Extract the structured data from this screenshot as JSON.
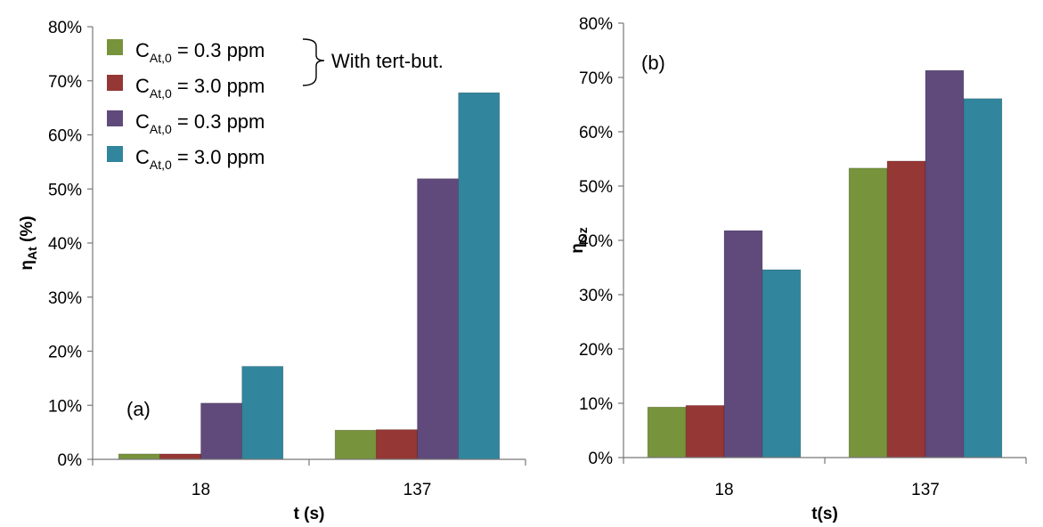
{
  "chart_data": [
    {
      "type": "bar",
      "panel_label": "(a)",
      "xlabel": "t (s)",
      "ylabel": {
        "main": "η",
        "sub": "At",
        "rest": " (%)"
      },
      "categories": [
        "18",
        "137"
      ],
      "ylim": [
        0,
        0.8
      ],
      "yticks": [
        "0%",
        "10%",
        "20%",
        "30%",
        "40%",
        "50%",
        "60%",
        "70%",
        "80%"
      ],
      "grid": false,
      "legend_position": "top-left",
      "series": [
        {
          "name": "C_At,0 = 0.3 ppm",
          "group": "With tert-but.",
          "color": "#77933c",
          "values": [
            0.01,
            0.054
          ]
        },
        {
          "name": "C_At,0 = 3.0 ppm",
          "group": "With tert-but.",
          "color": "#953735",
          "values": [
            0.01,
            0.055
          ]
        },
        {
          "name": "C_At,0 = 0.3 ppm",
          "group": "",
          "color": "#604a7b",
          "values": [
            0.104,
            0.519
          ]
        },
        {
          "name": "C_At,0 = 3.0 ppm",
          "group": "",
          "color": "#31859c",
          "values": [
            0.172,
            0.678
          ]
        }
      ]
    },
    {
      "type": "bar",
      "panel_label": "(b)",
      "xlabel": "t(s)",
      "ylabel": {
        "main": "η",
        "sub": "Oz",
        "rest": ""
      },
      "categories": [
        "18",
        "137"
      ],
      "ylim": [
        0,
        0.8
      ],
      "yticks": [
        "0%",
        "10%",
        "20%",
        "30%",
        "40%",
        "50%",
        "60%",
        "70%",
        "80%"
      ],
      "grid": false,
      "series": [
        {
          "color": "#77933c",
          "values": [
            0.093,
            0.533
          ]
        },
        {
          "color": "#953735",
          "values": [
            0.096,
            0.546
          ]
        },
        {
          "color": "#604a7b",
          "values": [
            0.418,
            0.713
          ]
        },
        {
          "color": "#31859c",
          "values": [
            0.346,
            0.661
          ]
        }
      ]
    }
  ],
  "legend": {
    "entries": [
      {
        "label_main": "C",
        "label_sub": "At,0",
        "label_rest": " = 0.3 ppm",
        "color": "#77933c"
      },
      {
        "label_main": "C",
        "label_sub": "At,0",
        "label_rest": " = 3.0 ppm",
        "color": "#953735"
      },
      {
        "label_main": "C",
        "label_sub": "At,0",
        "label_rest": " = 0.3 ppm",
        "color": "#604a7b"
      },
      {
        "label_main": "C",
        "label_sub": "At,0",
        "label_rest": " = 3.0 ppm",
        "color": "#31859c"
      }
    ],
    "group_label": "With tert-but."
  }
}
